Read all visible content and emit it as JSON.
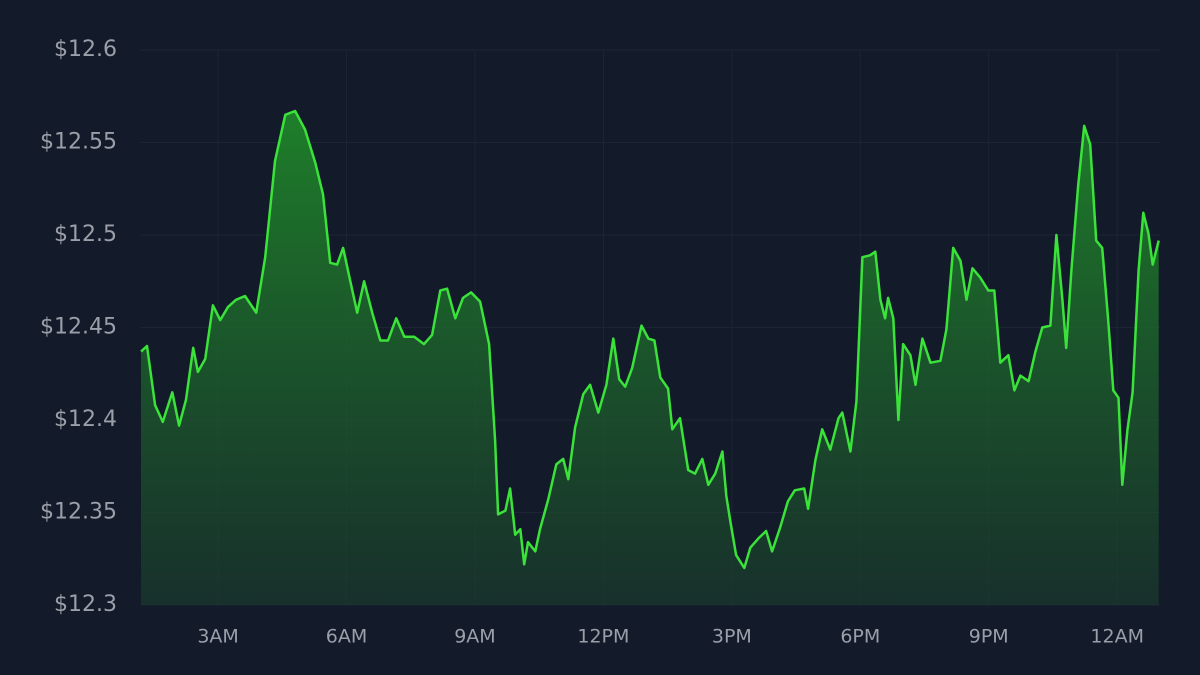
{
  "chart_data": {
    "type": "area",
    "x": [
      1.2,
      1.34,
      1.53,
      1.71,
      1.93,
      2.09,
      2.25,
      2.42,
      2.53,
      2.7,
      2.88,
      3.05,
      3.23,
      3.42,
      3.63,
      3.89,
      4.1,
      4.33,
      4.57,
      4.8,
      5.03,
      5.27,
      5.45,
      5.62,
      5.78,
      5.92,
      6.08,
      6.25,
      6.41,
      6.6,
      6.79,
      6.97,
      7.16,
      7.35,
      7.58,
      7.81,
      8.0,
      8.19,
      8.35,
      8.54,
      8.72,
      8.91,
      9.12,
      9.33,
      9.47,
      9.54,
      9.71,
      9.82,
      9.94,
      10.06,
      10.15,
      10.24,
      10.41,
      10.52,
      10.71,
      10.9,
      11.06,
      11.18,
      11.34,
      11.53,
      11.69,
      11.88,
      12.07,
      12.23,
      12.37,
      12.51,
      12.67,
      12.89,
      13.05,
      13.19,
      13.33,
      13.51,
      13.61,
      13.79,
      13.98,
      14.14,
      14.31,
      14.45,
      14.61,
      14.78,
      14.87,
      14.96,
      15.1,
      15.29,
      15.43,
      15.62,
      15.8,
      15.94,
      16.13,
      16.31,
      16.47,
      16.69,
      16.78,
      16.95,
      17.11,
      17.3,
      17.49,
      17.58,
      17.77,
      17.91,
      18.05,
      18.23,
      18.35,
      18.47,
      18.58,
      18.65,
      18.77,
      18.89,
      19.0,
      19.17,
      19.29,
      19.45,
      19.64,
      19.87,
      20.01,
      20.17,
      20.34,
      20.48,
      20.62,
      20.8,
      20.99,
      21.13,
      21.27,
      21.46,
      21.6,
      21.74,
      21.93,
      22.09,
      22.25,
      22.44,
      22.58,
      22.72,
      22.81,
      22.93,
      23.09,
      23.23,
      23.37,
      23.51,
      23.65,
      23.79,
      23.91,
      24.03,
      24.12,
      24.24,
      24.36,
      24.5,
      24.61,
      24.73,
      24.83,
      24.97
    ],
    "values": [
      12.437,
      12.44,
      12.408,
      12.399,
      12.415,
      12.397,
      12.411,
      12.439,
      12.426,
      12.433,
      12.462,
      12.454,
      12.461,
      12.465,
      12.467,
      12.458,
      12.488,
      12.54,
      12.565,
      12.567,
      12.557,
      12.539,
      12.522,
      12.485,
      12.484,
      12.493,
      12.476,
      12.458,
      12.475,
      12.458,
      12.443,
      12.443,
      12.455,
      12.445,
      12.445,
      12.441,
      12.446,
      12.47,
      12.471,
      12.455,
      12.466,
      12.469,
      12.464,
      12.441,
      12.389,
      12.349,
      12.351,
      12.363,
      12.338,
      12.341,
      12.322,
      12.334,
      12.329,
      12.341,
      12.357,
      12.376,
      12.379,
      12.368,
      12.396,
      12.414,
      12.419,
      12.404,
      12.419,
      12.444,
      12.422,
      12.418,
      12.428,
      12.451,
      12.444,
      12.443,
      12.423,
      12.417,
      12.395,
      12.401,
      12.373,
      12.371,
      12.379,
      12.365,
      12.371,
      12.383,
      12.359,
      12.346,
      12.327,
      12.32,
      12.331,
      12.336,
      12.34,
      12.329,
      12.342,
      12.356,
      12.362,
      12.363,
      12.352,
      12.378,
      12.395,
      12.384,
      12.401,
      12.404,
      12.383,
      12.41,
      12.488,
      12.489,
      12.491,
      12.465,
      12.455,
      12.466,
      12.455,
      12.4,
      12.441,
      12.435,
      12.419,
      12.444,
      12.431,
      12.432,
      12.449,
      12.493,
      12.486,
      12.465,
      12.482,
      12.477,
      12.47,
      12.47,
      12.431,
      12.435,
      12.416,
      12.424,
      12.421,
      12.437,
      12.45,
      12.451,
      12.5,
      12.465,
      12.439,
      12.481,
      12.527,
      12.559,
      12.549,
      12.497,
      12.493,
      12.454,
      12.416,
      12.412,
      12.365,
      12.395,
      12.415,
      12.481,
      12.512,
      12.501,
      12.484,
      12.497
    ],
    "color": "#3ae23a",
    "xlim": [
      1.2,
      25
    ],
    "xticks": [
      {
        "value": 3,
        "label": "3AM"
      },
      {
        "value": 6,
        "label": "6AM"
      },
      {
        "value": 9,
        "label": "9AM"
      },
      {
        "value": 12,
        "label": "12PM"
      },
      {
        "value": 15,
        "label": "3PM"
      },
      {
        "value": 18,
        "label": "6PM"
      },
      {
        "value": 21,
        "label": "9PM"
      },
      {
        "value": 24,
        "label": "12AM"
      }
    ],
    "ylim": [
      12.3,
      12.6
    ],
    "yticks": [
      {
        "value": 12.3,
        "label": "$12.3"
      },
      {
        "value": 12.35,
        "label": "$12.35"
      },
      {
        "value": 12.4,
        "label": "$12.4"
      },
      {
        "value": 12.45,
        "label": "$12.45"
      },
      {
        "value": 12.5,
        "label": "$12.5"
      },
      {
        "value": 12.55,
        "label": "$12.55"
      },
      {
        "value": 12.6,
        "label": "$12.6"
      }
    ],
    "grid": true
  }
}
